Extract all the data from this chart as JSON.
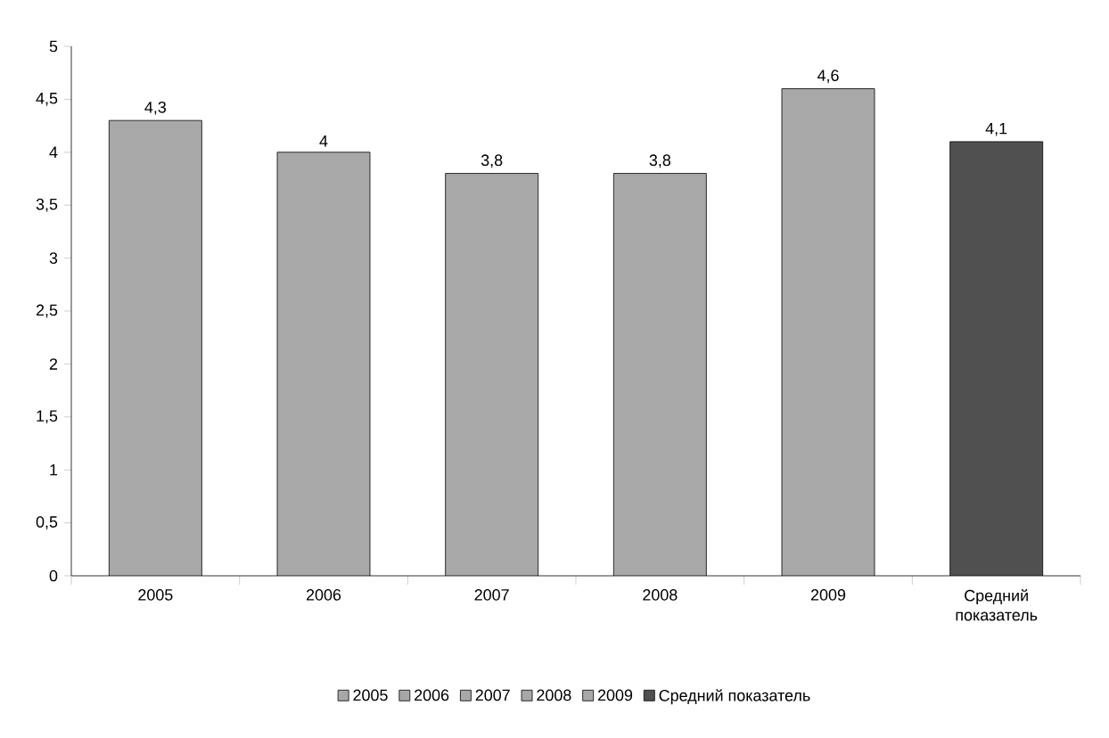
{
  "chart_data": {
    "type": "bar",
    "categories": [
      "2005",
      "2006",
      "2007",
      "2008",
      "2009",
      "Средний показатель"
    ],
    "series": [
      {
        "name": "2005",
        "color": "#a8a8a8",
        "values": [
          4.3,
          null,
          null,
          null,
          null,
          null
        ],
        "value_labels": [
          "4,3",
          null,
          null,
          null,
          null,
          null
        ]
      },
      {
        "name": "2006",
        "color": "#a8a8a8",
        "values": [
          null,
          4,
          null,
          null,
          null,
          null
        ],
        "value_labels": [
          null,
          "4",
          null,
          null,
          null,
          null
        ]
      },
      {
        "name": "2007",
        "color": "#a8a8a8",
        "values": [
          null,
          null,
          3.8,
          null,
          null,
          null
        ],
        "value_labels": [
          null,
          null,
          "3,8",
          null,
          null,
          null
        ]
      },
      {
        "name": "2008",
        "color": "#a8a8a8",
        "values": [
          null,
          null,
          null,
          3.8,
          null,
          null
        ],
        "value_labels": [
          null,
          null,
          null,
          "3,8",
          null,
          null
        ]
      },
      {
        "name": "2009",
        "color": "#a8a8a8",
        "values": [
          null,
          null,
          null,
          null,
          4.6,
          null
        ],
        "value_labels": [
          null,
          null,
          null,
          null,
          "4,6",
          null
        ]
      },
      {
        "name": "Средний показатель",
        "color": "#505050",
        "values": [
          null,
          null,
          null,
          null,
          null,
          4.1
        ],
        "value_labels": [
          null,
          null,
          null,
          null,
          null,
          "4,1"
        ]
      }
    ],
    "ylim": [
      0,
      5
    ],
    "yticks": [
      0,
      {
        "value": 0.5,
        "label": "0,5"
      },
      1,
      {
        "value": 1.5,
        "label": "1,5"
      },
      2,
      {
        "value": 2.5,
        "label": "2,5"
      },
      3,
      {
        "value": 3.5,
        "label": "3,5"
      },
      4,
      {
        "value": 4.5,
        "label": "4,5"
      },
      5
    ],
    "legend": "bottom"
  }
}
